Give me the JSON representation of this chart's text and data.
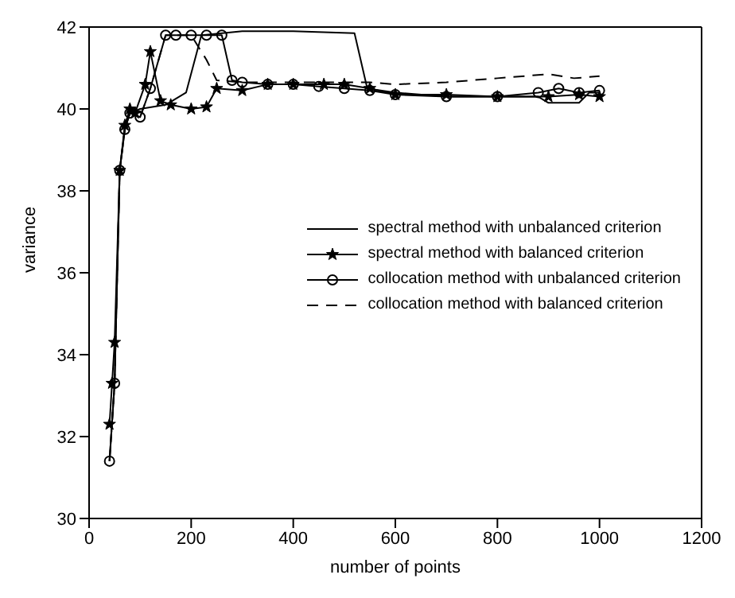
{
  "chart_data": {
    "type": "line",
    "xlabel": "number of points",
    "ylabel": "variance",
    "xlim": [
      0,
      1200
    ],
    "xticks": [
      0,
      200,
      400,
      600,
      800,
      1000,
      1200
    ],
    "ylim": [
      30,
      42
    ],
    "yticks": [
      30,
      32,
      34,
      36,
      38,
      40,
      42
    ],
    "grid": false,
    "legend": "right",
    "series": [
      {
        "name": "spectral method with unbalanced criterion",
        "color": "#000000",
        "marker": "none",
        "line_style": "solid",
        "x": [
          40,
          50,
          60,
          70,
          80,
          100,
          150,
          190,
          220,
          300,
          400,
          520,
          545,
          600,
          700,
          800,
          880,
          900,
          960,
          980,
          1000
        ],
        "values": [
          31.4,
          33.3,
          38.5,
          39.5,
          39.9,
          40.0,
          40.1,
          40.4,
          41.8,
          41.9,
          41.9,
          41.85,
          40.5,
          40.4,
          40.3,
          40.3,
          40.3,
          40.15,
          40.15,
          40.4,
          40.4
        ]
      },
      {
        "name": "spectral method with balanced criterion",
        "color": "#000000",
        "marker": "star",
        "line_style": "solid",
        "x": [
          40,
          45,
          50,
          60,
          70,
          80,
          90,
          110,
          120,
          140,
          160,
          200,
          230,
          250,
          300,
          350,
          400,
          460,
          500,
          550,
          600,
          700,
          800,
          900,
          960,
          1000
        ],
        "values": [
          32.3,
          33.3,
          34.3,
          38.5,
          39.6,
          40.0,
          39.9,
          40.6,
          41.4,
          40.2,
          40.1,
          40.0,
          40.05,
          40.5,
          40.45,
          40.6,
          40.6,
          40.6,
          40.6,
          40.5,
          40.35,
          40.35,
          40.3,
          40.3,
          40.35,
          40.3
        ]
      },
      {
        "name": "collocation method with unbalanced criterion",
        "color": "#000000",
        "marker": "circle",
        "line_style": "solid",
        "x": [
          40,
          50,
          60,
          70,
          80,
          100,
          120,
          150,
          170,
          200,
          230,
          260,
          280,
          300,
          350,
          400,
          450,
          500,
          550,
          600,
          700,
          800,
          880,
          920,
          960,
          1000
        ],
        "values": [
          31.4,
          33.3,
          38.5,
          39.5,
          39.9,
          39.8,
          40.5,
          41.8,
          41.8,
          41.8,
          41.8,
          41.8,
          40.7,
          40.65,
          40.6,
          40.6,
          40.55,
          40.5,
          40.45,
          40.35,
          40.3,
          40.3,
          40.4,
          40.5,
          40.4,
          40.45
        ]
      },
      {
        "name": "collocation method with balanced criterion",
        "color": "#000000",
        "marker": "none",
        "line_style": "dashed",
        "x": [
          40,
          50,
          60,
          70,
          80,
          100,
          120,
          150,
          200,
          230,
          250,
          300,
          400,
          550,
          600,
          700,
          800,
          900,
          950,
          1000
        ],
        "values": [
          31.4,
          33.3,
          38.5,
          39.5,
          39.9,
          39.8,
          40.5,
          41.8,
          41.8,
          41.2,
          40.7,
          40.65,
          40.65,
          40.65,
          40.6,
          40.65,
          40.75,
          40.85,
          40.75,
          40.8
        ]
      }
    ]
  }
}
